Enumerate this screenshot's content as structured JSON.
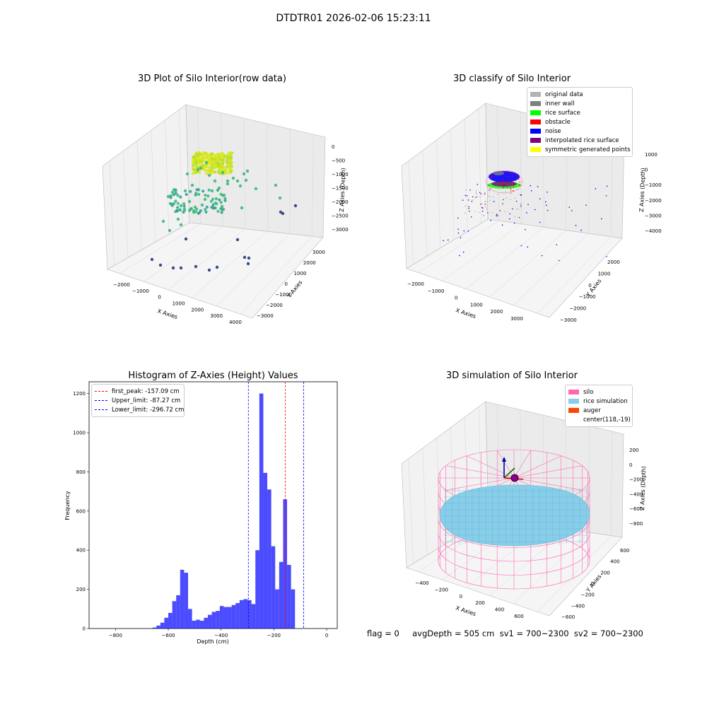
{
  "figure": {
    "suptitle": "DTDTR01 2026-02-06 15:23:11",
    "footer": "flag = 0     avgDepth = 505 cm  sv1 = 700~2300  sv2 = 700~2300"
  },
  "chart_data": [
    {
      "type": "scatter",
      "subtype": "3d",
      "title": "3D Plot of Silo Interior(row data)",
      "xlabel": "X Axies",
      "ylabel": "Y Axies",
      "zlabel": "Z Axies (Depth)",
      "xticks": [
        "−2000",
        "−1000",
        "0",
        "1000",
        "2000",
        "3000",
        "4000"
      ],
      "yticks": [
        "3000",
        "2000",
        "1000",
        "0",
        "−1000",
        "−2000",
        "−3000"
      ],
      "zticks": [
        "0",
        "−500",
        "−1000",
        "−1500",
        "−2000",
        "−2500",
        "−3000"
      ],
      "xlim": [
        -2500,
        4000
      ],
      "ylim": [
        -3500,
        3500
      ],
      "zlim": [
        -3300,
        200
      ],
      "colormap": "viridis",
      "point_groups": [
        {
          "name": "surface cluster",
          "color": "#d9e81e",
          "approx_count": 3000
        },
        {
          "name": "wall points",
          "color": "#3db87c",
          "approx_count": 120
        },
        {
          "name": "deep points",
          "color": "#3e4a89",
          "approx_count": 14
        }
      ]
    },
    {
      "type": "scatter",
      "subtype": "3d",
      "title": "3D classify of Silo Interior",
      "xlabel": "X Axies",
      "ylabel": "Y Axies",
      "zlabel": "Z Axies (Depth)",
      "xticks": [
        "−2000",
        "−1000",
        "0",
        "1000",
        "2000",
        "3000"
      ],
      "yticks": [
        "2000",
        "1000",
        "0",
        "−1000",
        "−2000",
        "−3000"
      ],
      "zticks": [
        "1000",
        "0",
        "−1000",
        "−2000",
        "−3000",
        "−4000"
      ],
      "legend": [
        {
          "label": "original data",
          "color": "#b3b3b3"
        },
        {
          "label": "inner wall",
          "color": "#808080"
        },
        {
          "label": "rice surface",
          "color": "#00ff00"
        },
        {
          "label": "obstacle",
          "color": "#ff0000"
        },
        {
          "label": "noise",
          "color": "#0000ff"
        },
        {
          "label": "interpolated rice surface",
          "color": "#800080"
        },
        {
          "label": "symmetric generated points",
          "color": "#ffff00"
        }
      ],
      "legend_position": "top-right"
    },
    {
      "type": "bar",
      "subtype": "histogram",
      "title": "Histogram of Z-Axies (Height) Values",
      "xlabel": "Depth (cm)",
      "ylabel": "Frequency",
      "xlim": [
        -900,
        40
      ],
      "ylim": [
        0,
        1260
      ],
      "xticks": [
        -800,
        -600,
        -400,
        -200,
        0
      ],
      "yticks": [
        0,
        200,
        400,
        600,
        800,
        1000,
        1200
      ],
      "bar_color": "#0000ff",
      "bin_start": -660,
      "bin_width": 15,
      "values": [
        5,
        15,
        30,
        55,
        80,
        140,
        170,
        300,
        285,
        100,
        40,
        45,
        40,
        55,
        70,
        85,
        90,
        115,
        110,
        110,
        120,
        130,
        145,
        150,
        145,
        125,
        400,
        1200,
        795,
        710,
        420,
        200,
        340,
        660,
        325,
        200
      ],
      "vlines": [
        {
          "label": "first_peak: -157.09 cm",
          "x": -157.09,
          "color": "#ff0000"
        },
        {
          "label": "Upper_limit: -87.27 cm",
          "x": -87.27,
          "color": "#0000ff"
        },
        {
          "label": "Lower_limit: -296.72 cm",
          "x": -296.72,
          "color": "#0000ff"
        }
      ],
      "legend_position": "top-left"
    },
    {
      "type": "surface",
      "subtype": "3d",
      "title": "3D simulation of Silo Interior",
      "xlabel": "X Axies",
      "ylabel": "Y Axies",
      "zlabel": "Z Axies (Depth)",
      "xticks": [
        "−400",
        "−200",
        "0",
        "200",
        "400",
        "600"
      ],
      "yticks": [
        "600",
        "400",
        "200",
        "0",
        "−200",
        "−400",
        "−600"
      ],
      "zticks": [
        "200",
        "0",
        "−200",
        "−400",
        "−600",
        "−800"
      ],
      "legend": [
        {
          "label": "silo",
          "color": "#ff69b4"
        },
        {
          "label": "rice simulation",
          "color": "#87ceeb"
        },
        {
          "label": "auger",
          "color": "#ff4500"
        },
        {
          "label": "center(118,-19)",
          "color": ""
        }
      ],
      "legend_position": "top-right"
    }
  ]
}
